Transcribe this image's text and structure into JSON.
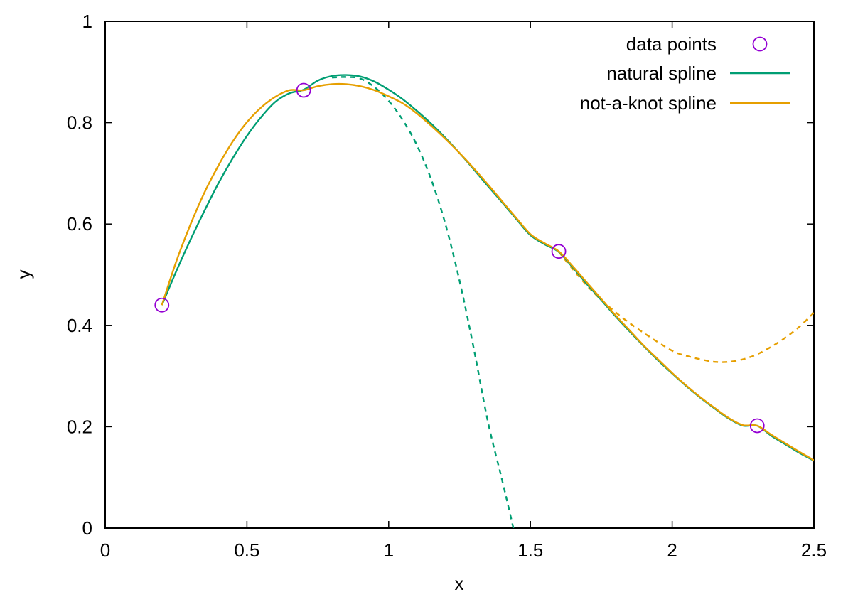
{
  "chart_data": {
    "type": "line",
    "title": "",
    "xlabel": "x",
    "ylabel": "y",
    "xlim": [
      0,
      2.5
    ],
    "ylim": [
      0,
      1
    ],
    "xticks": [
      0,
      0.5,
      1,
      1.5,
      2,
      2.5
    ],
    "xtick_labels": [
      "0",
      "0.5",
      "1",
      "1.5",
      "2",
      "2.5"
    ],
    "yticks": [
      0,
      0.2,
      0.4,
      0.6,
      0.8,
      1
    ],
    "ytick_labels": [
      "0",
      "0.2",
      "0.4",
      "0.6",
      "0.8",
      "1"
    ],
    "legend_position": "top-right",
    "grid": false,
    "colors": {
      "data_points": "#9400d3",
      "natural": "#009e73",
      "notaknot": "#e69f00"
    },
    "points": {
      "name": "data points",
      "x": [
        0.2,
        0.7,
        1.6,
        2.3
      ],
      "y": [
        0.44,
        0.864,
        0.546,
        0.202
      ]
    },
    "series": [
      {
        "name": "natural spline",
        "style": "solid",
        "x": [
          0.2,
          0.25,
          0.3,
          0.35,
          0.4,
          0.45,
          0.5,
          0.55,
          0.6,
          0.65,
          0.7,
          0.75,
          0.8,
          0.85,
          0.9,
          0.95,
          1.0,
          1.05,
          1.1,
          1.15,
          1.2,
          1.25,
          1.3,
          1.35,
          1.4,
          1.45,
          1.5,
          1.55,
          1.6,
          1.65,
          1.7,
          1.75,
          1.8,
          1.85,
          1.9,
          1.95,
          2.0,
          2.05,
          2.1,
          2.15,
          2.2,
          2.25,
          2.3,
          2.35,
          2.4,
          2.45,
          2.5
        ],
        "y": [
          0.44,
          0.506,
          0.568,
          0.626,
          0.681,
          0.73,
          0.774,
          0.811,
          0.841,
          0.858,
          0.865,
          0.883,
          0.892,
          0.894,
          0.891,
          0.881,
          0.865,
          0.846,
          0.823,
          0.798,
          0.77,
          0.74,
          0.708,
          0.675,
          0.643,
          0.61,
          0.578,
          0.56,
          0.545,
          0.514,
          0.481,
          0.45,
          0.418,
          0.388,
          0.359,
          0.331,
          0.305,
          0.28,
          0.257,
          0.236,
          0.216,
          0.202,
          0.202,
          0.182,
          0.165,
          0.148,
          0.133
        ]
      },
      {
        "name": "not-a-knot spline",
        "style": "solid",
        "x": [
          0.2,
          0.25,
          0.3,
          0.35,
          0.4,
          0.45,
          0.5,
          0.55,
          0.6,
          0.65,
          0.7,
          0.75,
          0.8,
          0.85,
          0.9,
          0.95,
          1.0,
          1.05,
          1.1,
          1.15,
          1.2,
          1.25,
          1.3,
          1.35,
          1.4,
          1.45,
          1.5,
          1.55,
          1.6,
          1.65,
          1.7,
          1.75,
          1.8,
          1.85,
          1.9,
          1.95,
          2.0,
          2.05,
          2.1,
          2.15,
          2.2,
          2.25,
          2.3,
          2.35,
          2.4,
          2.45,
          2.5
        ],
        "y": [
          0.44,
          0.525,
          0.598,
          0.662,
          0.716,
          0.763,
          0.801,
          0.83,
          0.851,
          0.864,
          0.864,
          0.872,
          0.876,
          0.876,
          0.872,
          0.864,
          0.852,
          0.838,
          0.818,
          0.794,
          0.768,
          0.74,
          0.71,
          0.678,
          0.645,
          0.612,
          0.58,
          0.562,
          0.546,
          0.516,
          0.484,
          0.452,
          0.42,
          0.39,
          0.36,
          0.333,
          0.306,
          0.281,
          0.258,
          0.237,
          0.217,
          0.203,
          0.202,
          0.184,
          0.167,
          0.15,
          0.134
        ]
      },
      {
        "style": "dashed",
        "color_key": "natural",
        "x": [
          0.8,
          0.85,
          0.9,
          0.95,
          1.0,
          1.05,
          1.1,
          1.15,
          1.2,
          1.25,
          1.3,
          1.35,
          1.4,
          1.44
        ],
        "y": [
          0.889,
          0.89,
          0.887,
          0.87,
          0.843,
          0.805,
          0.755,
          0.688,
          0.6,
          0.488,
          0.355,
          0.21,
          0.095,
          0.0
        ]
      },
      {
        "style": "dashed",
        "color_key": "notaknot",
        "x": [
          1.6,
          1.7,
          1.8,
          1.9,
          2.0,
          2.05,
          2.1,
          2.15,
          2.2,
          2.25,
          2.3,
          2.35,
          2.4,
          2.45,
          2.5
        ],
        "y": [
          0.545,
          0.478,
          0.426,
          0.385,
          0.35,
          0.34,
          0.333,
          0.328,
          0.328,
          0.333,
          0.343,
          0.358,
          0.376,
          0.398,
          0.425
        ]
      }
    ]
  }
}
